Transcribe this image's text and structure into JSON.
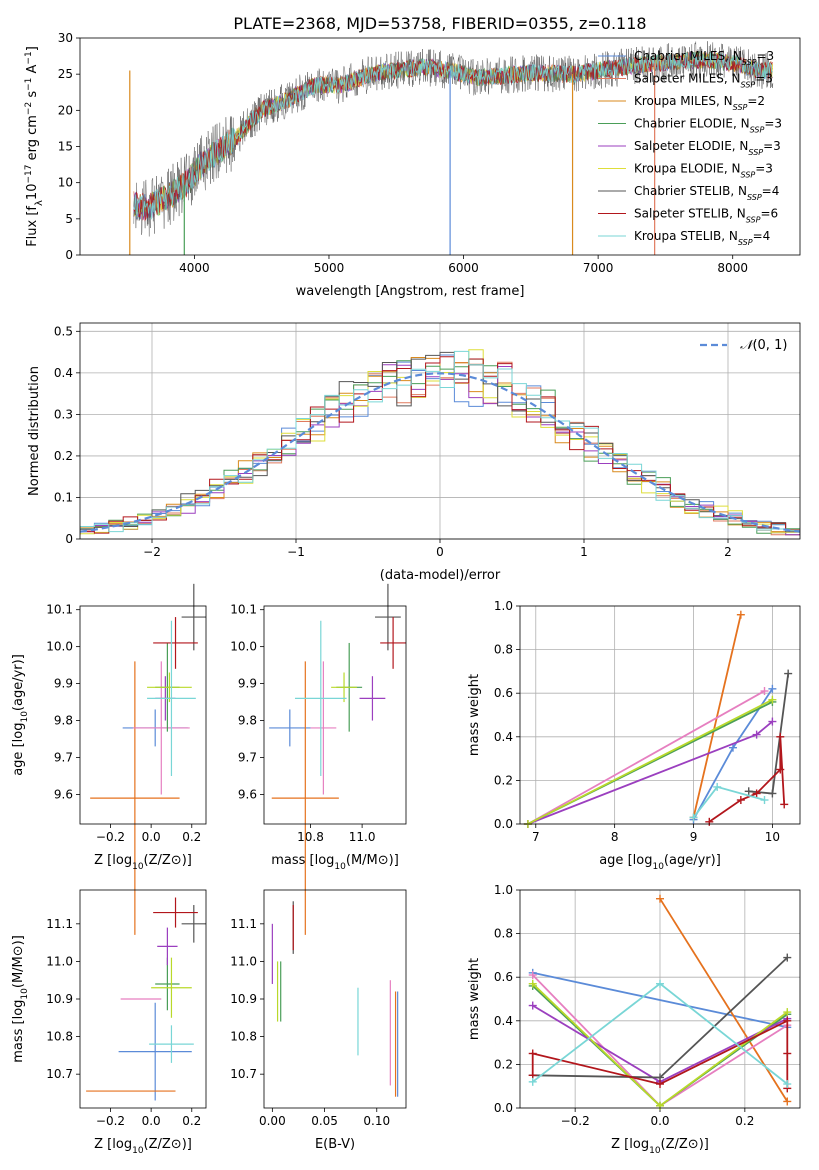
{
  "figure": {
    "title": "PLATE=2368, MJD=53758, FIBERID=0355, z=0.118"
  },
  "colors": {
    "Chabrier MILES": "#5b8bd8",
    "Salpeter MILES": "#e07a5f",
    "Kroupa MILES": "#d98a1e",
    "Chabrier ELODIE": "#4a9e58",
    "Salpeter ELODIE": "#9b3fbf",
    "Kroupa ELODIE": "#dede3a",
    "Chabrier STELIB": "#555555",
    "Salpeter STELIB": "#b2161c",
    "Kroupa STELIB": "#79d6d6",
    "extra_pink": "#e67fc0",
    "extra_orange": "#e5721e",
    "extra_lime": "#b9d92a",
    "normal_curve": "#5b8bd8"
  },
  "chart_data": [
    {
      "id": "spectrum",
      "type": "line",
      "xlabel": "wavelength [Angstrom, rest frame]",
      "ylabel": "Flux [f_λ 10^-17 erg cm^-2 s^-1 A^-1]",
      "xlim": [
        3150,
        8500
      ],
      "ylim": [
        0,
        30
      ],
      "xticks": [
        4000,
        5000,
        6000,
        7000,
        8000
      ],
      "yticks": [
        0,
        5,
        10,
        15,
        20,
        25,
        30
      ],
      "grid": false,
      "legend": "top-right",
      "series": [
        {
          "name": "Chabrier MILES, N_SSP=3",
          "label": "Chabrier MILES, N",
          "sub": "SSP",
          "tail": "=3",
          "color": "#5b8bd8"
        },
        {
          "name": "Salpeter MILES, N_SSP=3",
          "label": "Salpeter MILES, N",
          "sub": "SSP",
          "tail": "=3",
          "color": "#e07a5f"
        },
        {
          "name": "Kroupa MILES, N_SSP=2",
          "label": "Kroupa MILES, N",
          "sub": "SSP",
          "tail": "=2",
          "color": "#d98a1e"
        },
        {
          "name": "Chabrier ELODIE, N_SSP=3",
          "label": "Chabrier ELODIE, N",
          "sub": "SSP",
          "tail": "=3",
          "color": "#4a9e58"
        },
        {
          "name": "Salpeter ELODIE, N_SSP=3",
          "label": "Salpeter ELODIE, N",
          "sub": "SSP",
          "tail": "=3",
          "color": "#9b3fbf"
        },
        {
          "name": "Kroupa ELODIE, N_SSP=3",
          "label": "Kroupa ELODIE, N",
          "sub": "SSP",
          "tail": "=3",
          "color": "#dede3a"
        },
        {
          "name": "Chabrier STELIB, N_SSP=4",
          "label": "Chabrier STELIB, N",
          "sub": "SSP",
          "tail": "=4",
          "color": "#555555"
        },
        {
          "name": "Salpeter STELIB, N_SSP=6",
          "label": "Salpeter STELIB, N",
          "sub": "SSP",
          "tail": "=6",
          "color": "#b2161c"
        },
        {
          "name": "Kroupa STELIB, N_SSP=4",
          "label": "Kroupa STELIB, N",
          "sub": "SSP",
          "tail": "=4",
          "color": "#79d6d6"
        }
      ],
      "continuum": [
        [
          3550,
          7.0
        ],
        [
          3650,
          6.5
        ],
        [
          3800,
          8.0
        ],
        [
          3950,
          10.0
        ],
        [
          4050,
          12.5
        ],
        [
          4150,
          14.0
        ],
        [
          4300,
          16.0
        ],
        [
          4500,
          20.0
        ],
        [
          4700,
          21.5
        ],
        [
          4900,
          23.5
        ],
        [
          5100,
          23.5
        ],
        [
          5300,
          25.0
        ],
        [
          5500,
          25.5
        ],
        [
          5700,
          26.0
        ],
        [
          5900,
          25.5
        ],
        [
          6100,
          24.5
        ],
        [
          6300,
          24.8
        ],
        [
          6500,
          25.2
        ],
        [
          6800,
          25.0
        ],
        [
          7000,
          25.5
        ],
        [
          7200,
          26.0
        ],
        [
          7400,
          26.5
        ],
        [
          7600,
          26.8
        ],
        [
          7800,
          27.0
        ],
        [
          8000,
          26.5
        ],
        [
          8200,
          25.5
        ]
      ],
      "drops": [
        [
          3520,
          "#d98a1e"
        ],
        [
          3925,
          "#4a9e58"
        ],
        [
          5900,
          "#5b8bd8"
        ],
        [
          6810,
          "#d98a1e"
        ],
        [
          7420,
          "#e07a5f"
        ]
      ],
      "model_xrange": [
        3550,
        8300
      ],
      "data_xrange": [
        3550,
        7450
      ]
    },
    {
      "id": "residuals",
      "type": "area",
      "xlabel": "(data-model)/error",
      "ylabel": "Normed distribution",
      "xlim": [
        -2.5,
        2.5
      ],
      "ylim": [
        0,
        0.52
      ],
      "xticks": [
        -2,
        -1,
        0,
        1,
        2
      ],
      "yticks": [
        0.0,
        0.1,
        0.2,
        0.3,
        0.4,
        0.5
      ],
      "grid": true,
      "legend": "top-right",
      "normal": {
        "name": "𝒩(0,1)",
        "label_a": "𝒩",
        "label_b": "(0, 1)",
        "mu": 0,
        "sigma": 1
      }
    },
    {
      "id": "age_vs_Z",
      "type": "scatter",
      "xlabel": "Z [log10(Z/Z⊙)]",
      "ylabel": "age [log10(age/yr)]",
      "xlim": [
        -0.35,
        0.27
      ],
      "ylim": [
        9.52,
        10.11
      ],
      "xticks": [
        -0.2,
        0.0,
        0.2
      ],
      "yticks": [
        9.6,
        9.7,
        9.8,
        9.9,
        10.0,
        10.1
      ],
      "grid": false,
      "points": [
        {
          "x": 0.02,
          "xerr": 0.16,
          "y": 9.78,
          "yerr": 0.05,
          "color": "#5b8bd8"
        },
        {
          "x": -0.08,
          "xerr": 0.22,
          "y": 9.59,
          "yerr": 0.37,
          "color": "#e5721e"
        },
        {
          "x": 0.05,
          "xerr": 0.14,
          "y": 9.78,
          "yerr": 0.18,
          "color": "#e67fc0"
        },
        {
          "x": 0.08,
          "xerr": 0.06,
          "y": 9.89,
          "yerr": 0.12,
          "color": "#4a9e58"
        },
        {
          "x": 0.07,
          "xerr": 0.05,
          "y": 9.86,
          "yerr": 0.06,
          "color": "#9b3fbf"
        },
        {
          "x": 0.09,
          "xerr": 0.11,
          "y": 9.89,
          "yerr": 0.04,
          "color": "#b9d92a"
        },
        {
          "x": 0.21,
          "xerr": 0.06,
          "y": 10.08,
          "yerr": 0.09,
          "color": "#555555"
        },
        {
          "x": 0.12,
          "xerr": 0.11,
          "y": 10.01,
          "yerr": 0.07,
          "color": "#b2161c"
        },
        {
          "x": 0.1,
          "xerr": 0.12,
          "y": 9.86,
          "yerr": 0.21,
          "color": "#79d6d6"
        }
      ]
    },
    {
      "id": "age_vs_mass",
      "type": "scatter",
      "xlabel": "mass [log10(M/M⊙)]",
      "ylabel": "",
      "xlim": [
        10.62,
        11.17
      ],
      "ylim": [
        9.52,
        10.11
      ],
      "xticks": [
        10.8,
        11.0
      ],
      "yticks": [
        9.6,
        9.7,
        9.8,
        9.9,
        10.0,
        10.1
      ],
      "grid": false,
      "points": [
        {
          "x": 10.72,
          "xerr": 0.08,
          "y": 9.78,
          "yerr": 0.05,
          "color": "#5b8bd8"
        },
        {
          "x": 10.78,
          "xerr": 0.13,
          "y": 9.59,
          "yerr": 0.37,
          "color": "#e5721e"
        },
        {
          "x": 10.85,
          "xerr": 0.05,
          "y": 9.78,
          "yerr": 0.18,
          "color": "#e67fc0"
        },
        {
          "x": 10.95,
          "xerr": 0.05,
          "y": 9.89,
          "yerr": 0.12,
          "color": "#4a9e58"
        },
        {
          "x": 11.04,
          "xerr": 0.05,
          "y": 9.86,
          "yerr": 0.06,
          "color": "#9b3fbf"
        },
        {
          "x": 10.93,
          "xerr": 0.05,
          "y": 9.89,
          "yerr": 0.04,
          "color": "#b9d92a"
        },
        {
          "x": 11.1,
          "xerr": 0.05,
          "y": 10.08,
          "yerr": 0.09,
          "color": "#555555"
        },
        {
          "x": 11.12,
          "xerr": 0.05,
          "y": 10.01,
          "yerr": 0.07,
          "color": "#b2161c"
        },
        {
          "x": 10.84,
          "xerr": 0.1,
          "y": 9.86,
          "yerr": 0.21,
          "color": "#79d6d6"
        }
      ]
    },
    {
      "id": "massweight_vs_age",
      "type": "line",
      "xlabel": "age [log10(age/yr)]",
      "ylabel": "mass weight",
      "xlim": [
        6.8,
        10.35
      ],
      "ylim": [
        0,
        1.0
      ],
      "xticks": [
        7,
        8,
        9,
        10
      ],
      "yticks": [
        0.0,
        0.2,
        0.4,
        0.6,
        0.8,
        1.0
      ],
      "grid": true,
      "series": [
        {
          "color": "#5b8bd8",
          "x": [
            9.0,
            9.5,
            10.0
          ],
          "y": [
            0.02,
            0.35,
            0.62
          ]
        },
        {
          "color": "#e5721e",
          "x": [
            9.0,
            9.6
          ],
          "y": [
            0.03,
            0.96
          ]
        },
        {
          "color": "#e67fc0",
          "x": [
            6.9,
            9.9
          ],
          "y": [
            0.0,
            0.61
          ]
        },
        {
          "color": "#4a9e58",
          "x": [
            6.9,
            10.0
          ],
          "y": [
            0.0,
            0.56
          ]
        },
        {
          "color": "#9b3fbf",
          "x": [
            6.9,
            9.8,
            10.0
          ],
          "y": [
            0.0,
            0.41,
            0.47
          ]
        },
        {
          "color": "#b9d92a",
          "x": [
            6.9,
            10.0
          ],
          "y": [
            0.0,
            0.57
          ]
        },
        {
          "color": "#555555",
          "x": [
            9.7,
            10.0,
            10.2
          ],
          "y": [
            0.15,
            0.14,
            0.69
          ]
        },
        {
          "color": "#b2161c",
          "x": [
            9.2,
            9.6,
            9.8,
            10.1,
            10.1,
            10.15
          ],
          "y": [
            0.01,
            0.11,
            0.14,
            0.25,
            0.4,
            0.09
          ]
        },
        {
          "color": "#79d6d6",
          "x": [
            9.0,
            9.3,
            9.9
          ],
          "y": [
            0.03,
            0.17,
            0.11
          ]
        }
      ]
    },
    {
      "id": "mass_vs_Z",
      "type": "scatter",
      "xlabel": "Z [log10(Z/Z⊙)]",
      "ylabel": "mass [log10(M/M⊙)]",
      "xlim": [
        -0.35,
        0.27
      ],
      "ylim": [
        10.61,
        11.19
      ],
      "xticks": [
        -0.2,
        0.0,
        0.2
      ],
      "yticks": [
        10.7,
        10.8,
        10.9,
        11.0,
        11.1
      ],
      "grid": false,
      "points": [
        {
          "x": 0.02,
          "xerr": 0.18,
          "y": 10.76,
          "yerr": 0.13,
          "color": "#5b8bd8"
        },
        {
          "x": -0.1,
          "xerr": 0.22,
          "y": 10.655,
          "yerr": 0.0,
          "color": "#e5721e"
        },
        {
          "x": -0.05,
          "xerr": 0.1,
          "y": 10.9,
          "yerr": 0.0,
          "color": "#e67fc0"
        },
        {
          "x": 0.08,
          "xerr": 0.06,
          "y": 10.94,
          "yerr": 0.07,
          "color": "#4a9e58"
        },
        {
          "x": 0.08,
          "xerr": 0.05,
          "y": 11.04,
          "yerr": 0.05,
          "color": "#9b3fbf"
        },
        {
          "x": 0.1,
          "xerr": 0.1,
          "y": 10.93,
          "yerr": 0.08,
          "color": "#b9d92a"
        },
        {
          "x": 0.21,
          "xerr": 0.06,
          "y": 11.1,
          "yerr": 0.05,
          "color": "#555555"
        },
        {
          "x": 0.12,
          "xerr": 0.11,
          "y": 11.13,
          "yerr": 0.04,
          "color": "#b2161c"
        },
        {
          "x": 0.1,
          "xerr": 0.11,
          "y": 10.78,
          "yerr": 0.05,
          "color": "#79d6d6"
        }
      ]
    },
    {
      "id": "mass_vs_ebv",
      "type": "scatter",
      "xlabel": "E(B-V)",
      "ylabel": "",
      "xlim": [
        -0.008,
        0.128
      ],
      "ylim": [
        10.61,
        11.19
      ],
      "xticks": [
        0.0,
        0.05,
        0.1
      ],
      "xticklabels": [
        "0.00",
        "0.05",
        "0.10"
      ],
      "yticks": [
        10.7,
        10.8,
        10.9,
        11.0,
        11.1
      ],
      "grid": false,
      "points": [
        {
          "x": 0.12,
          "y": 10.78,
          "yerr": 0.14,
          "color": "#5b8bd8"
        },
        {
          "x": 0.118,
          "y": 10.78,
          "yerr": 0.14,
          "color": "#e5721e"
        },
        {
          "x": 0.113,
          "y": 10.81,
          "yerr": 0.14,
          "color": "#e67fc0"
        },
        {
          "x": 0.008,
          "y": 10.92,
          "yerr": 0.08,
          "color": "#4a9e58"
        },
        {
          "x": 0.0,
          "y": 11.02,
          "yerr": 0.08,
          "color": "#9b3fbf"
        },
        {
          "x": 0.005,
          "y": 10.92,
          "yerr": 0.08,
          "color": "#b9d92a"
        },
        {
          "x": 0.02,
          "y": 11.09,
          "yerr": 0.07,
          "color": "#555555"
        },
        {
          "x": 0.02,
          "y": 11.09,
          "yerr": 0.06,
          "color": "#b2161c"
        },
        {
          "x": 0.082,
          "y": 10.84,
          "yerr": 0.09,
          "color": "#79d6d6"
        }
      ]
    },
    {
      "id": "massweight_vs_Z",
      "type": "line",
      "xlabel": "Z [log10(Z/Z⊙)]",
      "ylabel": "mass weight",
      "xlim": [
        -0.33,
        0.33
      ],
      "ylim": [
        0,
        1.0
      ],
      "xticks": [
        -0.2,
        0.0,
        0.2
      ],
      "yticks": [
        0.0,
        0.2,
        0.4,
        0.6,
        0.8,
        1.0
      ],
      "grid": true,
      "series": [
        {
          "color": "#5b8bd8",
          "x": [
            -0.3,
            0.3
          ],
          "y": [
            0.62,
            0.37
          ]
        },
        {
          "color": "#e5721e",
          "x": [
            0.0,
            0.3
          ],
          "y": [
            0.96,
            0.03
          ]
        },
        {
          "color": "#e67fc0",
          "x": [
            -0.3,
            0.0,
            0.3
          ],
          "y": [
            0.61,
            0.01,
            0.38
          ]
        },
        {
          "color": "#4a9e58",
          "x": [
            -0.3,
            0.0,
            0.3
          ],
          "y": [
            0.56,
            0.01,
            0.43
          ]
        },
        {
          "color": "#9b3fbf",
          "x": [
            -0.3,
            0.0,
            0.3
          ],
          "y": [
            0.47,
            0.12,
            0.41
          ]
        },
        {
          "color": "#b9d92a",
          "x": [
            -0.3,
            0.0,
            0.3
          ],
          "y": [
            0.57,
            0.01,
            0.44
          ]
        },
        {
          "color": "#555555",
          "x": [
            -0.3,
            0.0,
            0.3
          ],
          "y": [
            0.15,
            0.14,
            0.69
          ]
        },
        {
          "color": "#b2161c",
          "x": [
            -0.3,
            -0.3,
            0.0,
            0.3,
            0.3,
            0.3
          ],
          "y": [
            0.15,
            0.25,
            0.11,
            0.4,
            0.09,
            0.25
          ]
        },
        {
          "color": "#79d6d6",
          "x": [
            -0.3,
            0.0,
            0.3
          ],
          "y": [
            0.12,
            0.57,
            0.11
          ]
        }
      ]
    }
  ]
}
